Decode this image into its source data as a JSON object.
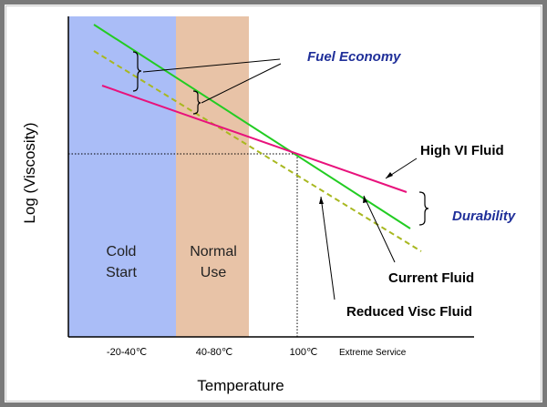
{
  "chart_data": {
    "type": "line",
    "xlabel": "Temperature",
    "ylabel": "Log (Viscosity)",
    "regions": [
      {
        "label_lines": [
          "Cold",
          "Start"
        ],
        "color": "#aabdf7"
      },
      {
        "label_lines": [
          "Normal",
          "Use"
        ],
        "color": "#e8c3a7"
      }
    ],
    "tick_labels": [
      "-20-40℃",
      "40-80℃",
      "100℃",
      "Extreme Service"
    ],
    "series": [
      {
        "name": "High VI Fluid",
        "color": "#e8127c",
        "dash": false
      },
      {
        "name": "Current Fluid",
        "color": "#22cc22",
        "dash": false
      },
      {
        "name": "Reduced Visc Fluid",
        "color": "#a8b820",
        "dash": true
      }
    ],
    "annotations": {
      "fuel_economy": {
        "text": "Fuel Economy",
        "color": "#1f2f99"
      },
      "durability": {
        "text": "Durability",
        "color": "#1f2f99"
      }
    }
  }
}
